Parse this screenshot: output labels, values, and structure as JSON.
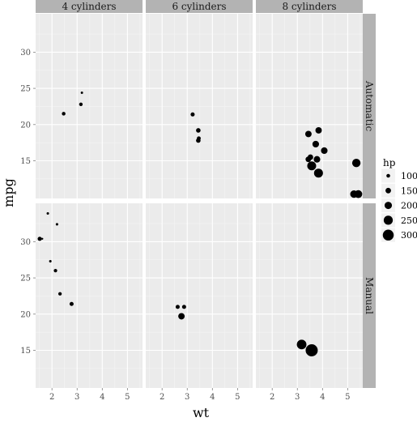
{
  "chart_data": {
    "type": "scatter",
    "xlabel": "wt",
    "ylabel": "mpg",
    "xlim": [
      1.35,
      5.6
    ],
    "ylim": [
      9.8,
      35.3
    ],
    "x_ticks": [
      2,
      3,
      4,
      5
    ],
    "y_ticks": [
      15,
      20,
      25,
      30
    ],
    "grid": true,
    "facet_cols": [
      "4 cylinders",
      "6 cylinders",
      "8 cylinders"
    ],
    "facet_rows": [
      "Automatic",
      "Manual"
    ],
    "size_legend": {
      "title": "hp",
      "position": "right",
      "entries": [
        {
          "label": "100",
          "value": 100
        },
        {
          "label": "150",
          "value": 150
        },
        {
          "label": "200",
          "value": 200
        },
        {
          "label": "250",
          "value": 250
        },
        {
          "label": "300",
          "value": 300
        }
      ]
    },
    "points": [
      {
        "col": 0,
        "row": 0,
        "wt": 3.19,
        "mpg": 24.4,
        "hp": 62
      },
      {
        "col": 0,
        "row": 0,
        "wt": 3.15,
        "mpg": 22.8,
        "hp": 95
      },
      {
        "col": 0,
        "row": 0,
        "wt": 2.465,
        "mpg": 21.5,
        "hp": 97
      },
      {
        "col": 1,
        "row": 0,
        "wt": 3.215,
        "mpg": 21.4,
        "hp": 110
      },
      {
        "col": 1,
        "row": 0,
        "wt": 3.44,
        "mpg": 19.2,
        "hp": 123
      },
      {
        "col": 1,
        "row": 0,
        "wt": 3.46,
        "mpg": 18.1,
        "hp": 105
      },
      {
        "col": 1,
        "row": 0,
        "wt": 3.44,
        "mpg": 17.8,
        "hp": 123
      },
      {
        "col": 2,
        "row": 0,
        "wt": 3.44,
        "mpg": 18.7,
        "hp": 175
      },
      {
        "col": 2,
        "row": 0,
        "wt": 3.57,
        "mpg": 14.3,
        "hp": 245
      },
      {
        "col": 2,
        "row": 0,
        "wt": 4.07,
        "mpg": 16.4,
        "hp": 180
      },
      {
        "col": 2,
        "row": 0,
        "wt": 3.73,
        "mpg": 17.3,
        "hp": 180
      },
      {
        "col": 2,
        "row": 0,
        "wt": 3.78,
        "mpg": 15.2,
        "hp": 180
      },
      {
        "col": 2,
        "row": 0,
        "wt": 5.25,
        "mpg": 10.4,
        "hp": 205
      },
      {
        "col": 2,
        "row": 0,
        "wt": 5.424,
        "mpg": 10.4,
        "hp": 215
      },
      {
        "col": 2,
        "row": 0,
        "wt": 5.345,
        "mpg": 14.7,
        "hp": 230
      },
      {
        "col": 2,
        "row": 0,
        "wt": 3.52,
        "mpg": 15.5,
        "hp": 150
      },
      {
        "col": 2,
        "row": 0,
        "wt": 3.435,
        "mpg": 15.2,
        "hp": 150
      },
      {
        "col": 2,
        "row": 0,
        "wt": 3.84,
        "mpg": 13.3,
        "hp": 245
      },
      {
        "col": 2,
        "row": 0,
        "wt": 3.845,
        "mpg": 19.2,
        "hp": 175
      },
      {
        "col": 0,
        "row": 1,
        "wt": 2.2,
        "mpg": 32.4,
        "hp": 66
      },
      {
        "col": 0,
        "row": 1,
        "wt": 1.615,
        "mpg": 30.4,
        "hp": 52
      },
      {
        "col": 0,
        "row": 1,
        "wt": 1.835,
        "mpg": 33.9,
        "hp": 65
      },
      {
        "col": 0,
        "row": 1,
        "wt": 1.935,
        "mpg": 27.3,
        "hp": 66
      },
      {
        "col": 0,
        "row": 1,
        "wt": 2.14,
        "mpg": 26.0,
        "hp": 91
      },
      {
        "col": 0,
        "row": 1,
        "wt": 1.513,
        "mpg": 30.4,
        "hp": 113
      },
      {
        "col": 0,
        "row": 1,
        "wt": 2.78,
        "mpg": 21.4,
        "hp": 109
      },
      {
        "col": 0,
        "row": 1,
        "wt": 2.32,
        "mpg": 22.8,
        "hp": 93
      },
      {
        "col": 1,
        "row": 1,
        "wt": 2.62,
        "mpg": 21.0,
        "hp": 110
      },
      {
        "col": 1,
        "row": 1,
        "wt": 2.875,
        "mpg": 21.0,
        "hp": 110
      },
      {
        "col": 1,
        "row": 1,
        "wt": 2.77,
        "mpg": 19.7,
        "hp": 175
      },
      {
        "col": 2,
        "row": 1,
        "wt": 3.17,
        "mpg": 15.8,
        "hp": 264
      },
      {
        "col": 2,
        "row": 1,
        "wt": 3.57,
        "mpg": 15.0,
        "hp": 335
      }
    ]
  }
}
